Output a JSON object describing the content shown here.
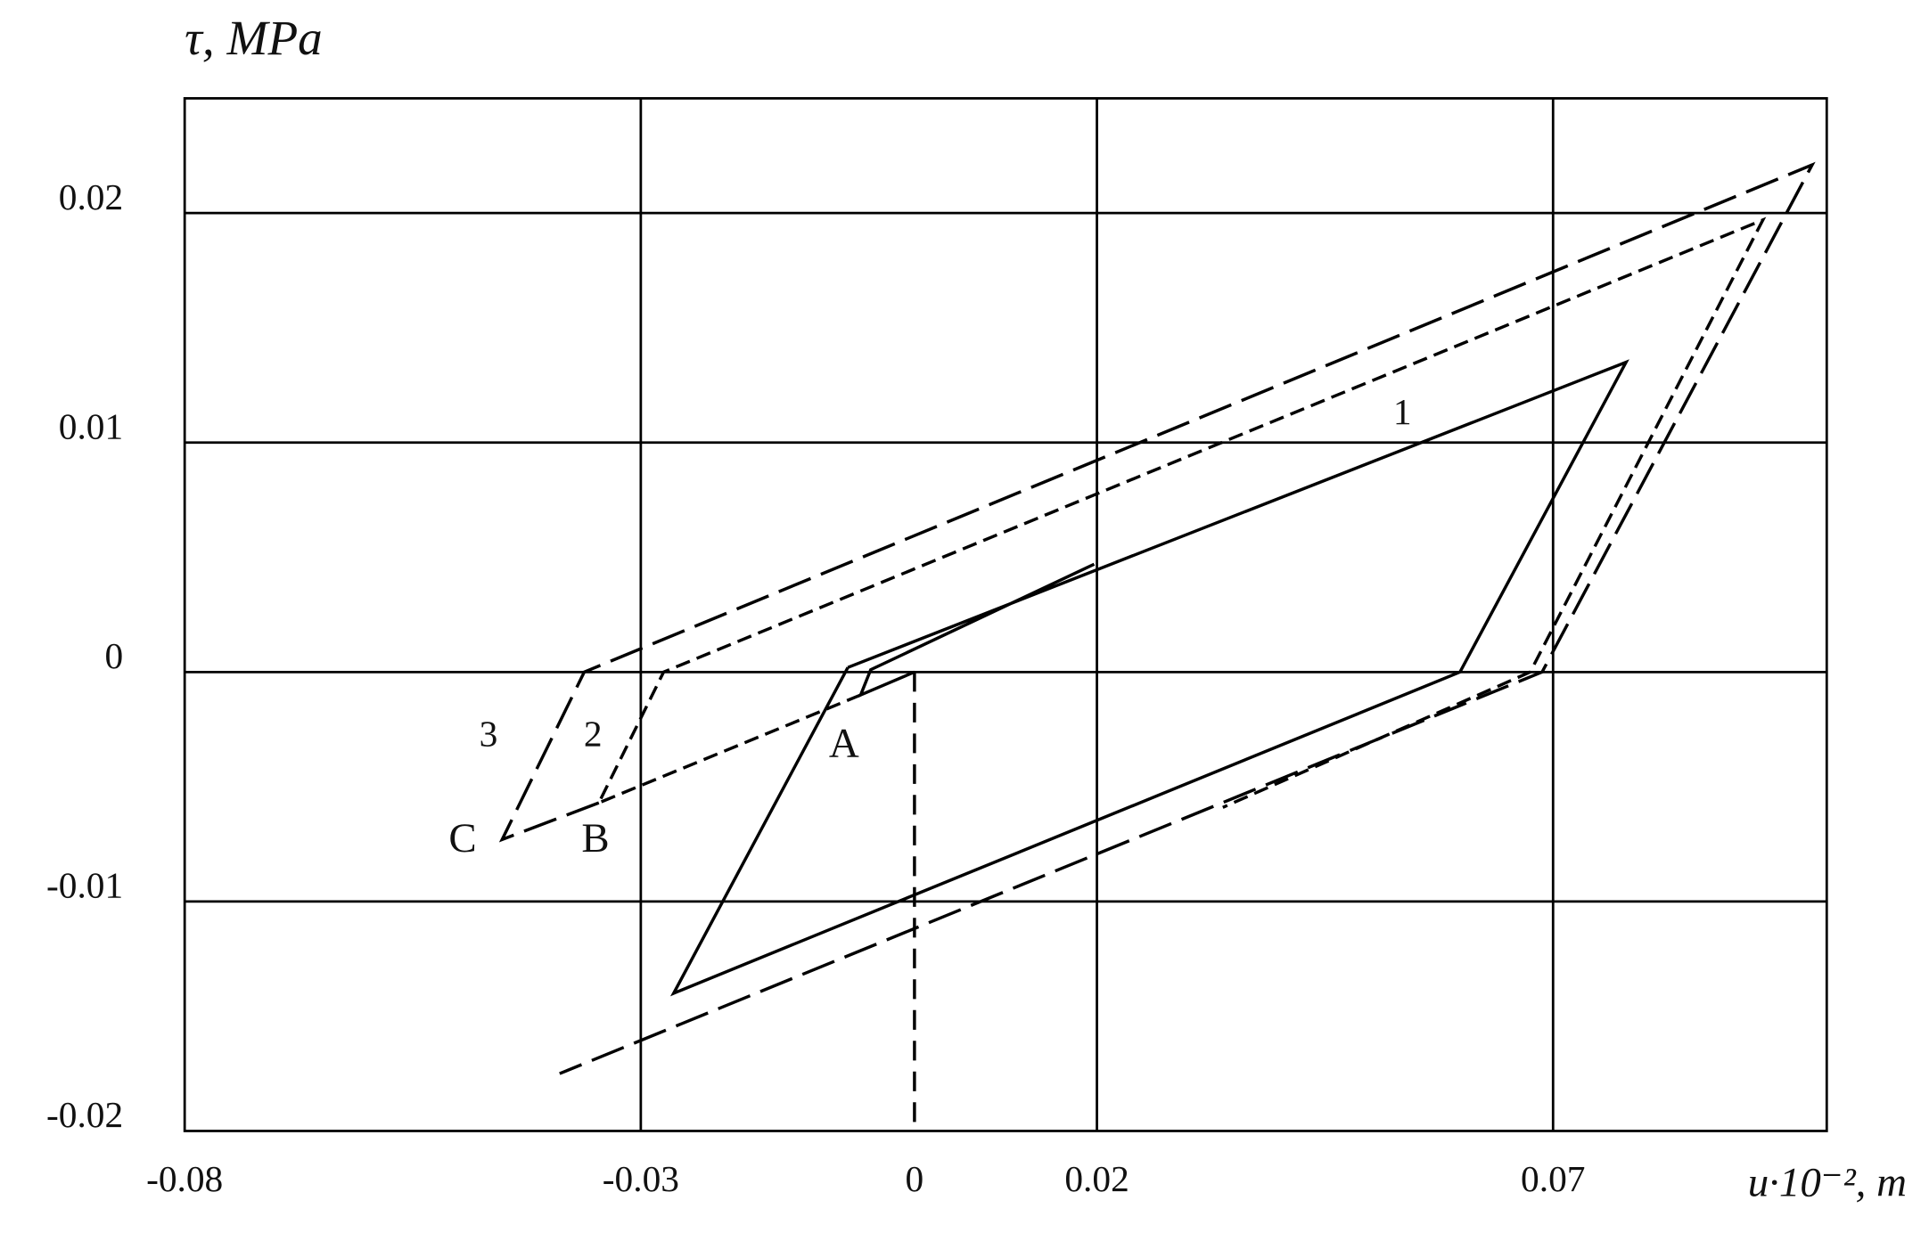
{
  "chart_data": {
    "type": "line",
    "y_label": "τ, MPa",
    "x_label": "u·10⁻², m",
    "xlim": [
      -0.08,
      0.1
    ],
    "ylim": [
      -0.02,
      0.025
    ],
    "xticks": [
      -0.08,
      -0.03,
      0,
      0.02,
      0.07
    ],
    "yticks": [
      -0.02,
      -0.01,
      0,
      0.01,
      0.02
    ],
    "x_grid": [
      -0.03,
      0.02,
      0.07
    ],
    "y_grid": [
      -0.01,
      0,
      0.01,
      0.02
    ],
    "series": [
      {
        "name": "1",
        "color": "#000000",
        "style": "solid",
        "x": [
          0,
          -0.0059,
          -0.0048,
          0.0197,
          null,
          -0.0073,
          0.078,
          0.0598,
          -0.0264,
          -0.0073
        ],
        "values": [
          0,
          -0.001,
          0.0001,
          0.0047,
          null,
          0.0002,
          0.0135,
          0,
          -0.014,
          0.0002
        ]
      },
      {
        "name": "2",
        "color": "#000000",
        "style": "short-dash",
        "x": [
          -0.0059,
          -0.0346,
          -0.0275,
          0.093,
          0.0675,
          0.0338
        ],
        "values": [
          -0.001,
          -0.0057,
          0,
          0.0197,
          0,
          -0.0059
        ]
      },
      {
        "name": "3",
        "color": "#000000",
        "style": "long-dash",
        "x": [
          -0.0346,
          -0.0452,
          -0.0362,
          0.0984,
          0.0688,
          -0.0389
        ],
        "values": [
          -0.0057,
          -0.0073,
          0,
          0.0221,
          0,
          -0.0175
        ]
      },
      {
        "color": "#000000",
        "style": "dash",
        "x": [
          0,
          0
        ],
        "values": [
          0,
          -0.02
        ]
      }
    ],
    "annotations": [
      "A",
      "B",
      "C"
    ]
  }
}
